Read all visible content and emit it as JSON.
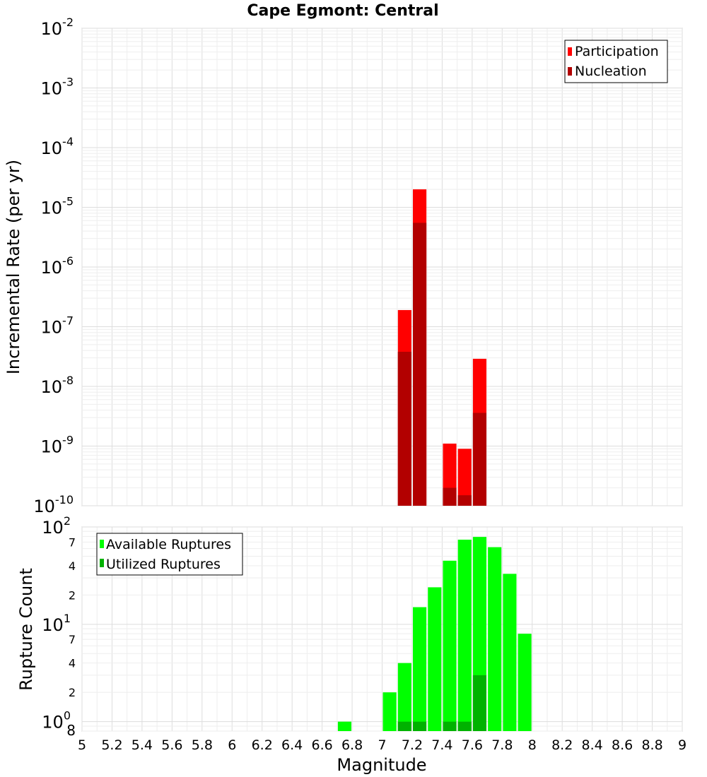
{
  "chart_data": [
    {
      "type": "bar",
      "title": "Cape Egmont: Central",
      "xlabel": "",
      "ylabel": "Incremental Rate (per yr)",
      "yscale": "log",
      "xlim": [
        5,
        9
      ],
      "ylim": [
        1e-10,
        0.01
      ],
      "y_ticks": [
        {
          "base": "10",
          "exp": "-2",
          "value": 0.01
        },
        {
          "base": "10",
          "exp": "-3",
          "value": 0.001
        },
        {
          "base": "10",
          "exp": "-4",
          "value": 0.0001
        },
        {
          "base": "10",
          "exp": "-5",
          "value": 1e-05
        },
        {
          "base": "10",
          "exp": "-6",
          "value": 1e-06
        },
        {
          "base": "10",
          "exp": "-7",
          "value": 1e-07
        },
        {
          "base": "10",
          "exp": "-8",
          "value": 1e-08
        },
        {
          "base": "10",
          "exp": "-9",
          "value": 1e-09
        },
        {
          "base": "10",
          "exp": "-10",
          "value": 1e-10
        }
      ],
      "grid": true,
      "legend_position": "top-right",
      "series": [
        {
          "name": "Participation",
          "color": "#ff0000",
          "points": [
            {
              "x": 7.15,
              "y": 1.9e-07
            },
            {
              "x": 7.25,
              "y": 2e-05
            },
            {
              "x": 7.45,
              "y": 1.1e-09
            },
            {
              "x": 7.55,
              "y": 9e-10
            },
            {
              "x": 7.65,
              "y": 2.9e-08
            }
          ]
        },
        {
          "name": "Nucleation",
          "color": "#b20000",
          "points": [
            {
              "x": 7.15,
              "y": 3.8e-08
            },
            {
              "x": 7.25,
              "y": 5.5e-06
            },
            {
              "x": 7.45,
              "y": 2e-10
            },
            {
              "x": 7.55,
              "y": 1.5e-10
            },
            {
              "x": 7.65,
              "y": 3.6e-09
            }
          ]
        }
      ]
    },
    {
      "type": "bar",
      "title": "",
      "xlabel": "Magnitude",
      "ylabel": "Rupture Count",
      "yscale": "log",
      "xlim": [
        5,
        9
      ],
      "ylim": [
        0.8,
        100
      ],
      "x_ticks": [
        "5",
        "5.2",
        "5.4",
        "5.6",
        "5.8",
        "6",
        "6.2",
        "6.4",
        "6.6",
        "6.8",
        "7",
        "7.2",
        "7.4",
        "7.6",
        "7.8",
        "8",
        "8.2",
        "8.4",
        "8.6",
        "8.8",
        "9"
      ],
      "y_major_ticks": [
        {
          "base": "10",
          "exp": "2",
          "value": 100
        },
        {
          "base": "10",
          "exp": "1",
          "value": 10
        },
        {
          "base": "10",
          "exp": "0",
          "value": 1
        }
      ],
      "y_minor_ticks": [
        {
          "label": "7",
          "value": 70
        },
        {
          "label": "4",
          "value": 40
        },
        {
          "label": "2",
          "value": 20
        },
        {
          "label": "7",
          "value": 7
        },
        {
          "label": "4",
          "value": 4
        },
        {
          "label": "2",
          "value": 2
        },
        {
          "label": "8",
          "value": 0.8
        }
      ],
      "grid": true,
      "legend_position": "top-left",
      "series": [
        {
          "name": "Available Ruptures",
          "color": "#00ff00",
          "points": [
            {
              "x": 6.75,
              "y": 1
            },
            {
              "x": 7.05,
              "y": 2
            },
            {
              "x": 7.15,
              "y": 4
            },
            {
              "x": 7.25,
              "y": 15
            },
            {
              "x": 7.35,
              "y": 24
            },
            {
              "x": 7.45,
              "y": 45
            },
            {
              "x": 7.55,
              "y": 74
            },
            {
              "x": 7.65,
              "y": 79
            },
            {
              "x": 7.75,
              "y": 62
            },
            {
              "x": 7.85,
              "y": 33
            },
            {
              "x": 7.95,
              "y": 8
            }
          ]
        },
        {
          "name": "Utilized Ruptures",
          "color": "#00b200",
          "points": [
            {
              "x": 7.15,
              "y": 1
            },
            {
              "x": 7.25,
              "y": 1
            },
            {
              "x": 7.45,
              "y": 1
            },
            {
              "x": 7.55,
              "y": 1
            },
            {
              "x": 7.65,
              "y": 3
            }
          ]
        }
      ]
    }
  ]
}
